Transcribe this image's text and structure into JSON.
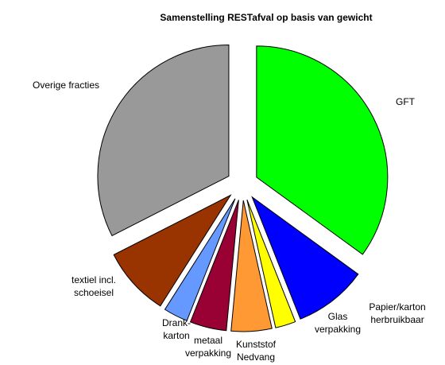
{
  "chart_data": {
    "type": "pie",
    "title": "Samenstelling  RESTafval op basis van gewicht",
    "categories": [
      "GFT",
      "Papier/karton\nherbruikbaar",
      "Glas\nverpakking",
      "Kunststof\nNedvang",
      "metaal\nverpakking",
      "Drank-\nkarton",
      "textiel incl.\nschoeisel",
      "Overige fracties"
    ],
    "values": [
      35,
      9,
      2.5,
      5,
      4.5,
      3,
      8.5,
      32.5
    ],
    "colors": [
      "#00ff00",
      "#0000ff",
      "#ffff00",
      "#ff9933",
      "#990033",
      "#6699ff",
      "#993300",
      "#999999"
    ]
  }
}
